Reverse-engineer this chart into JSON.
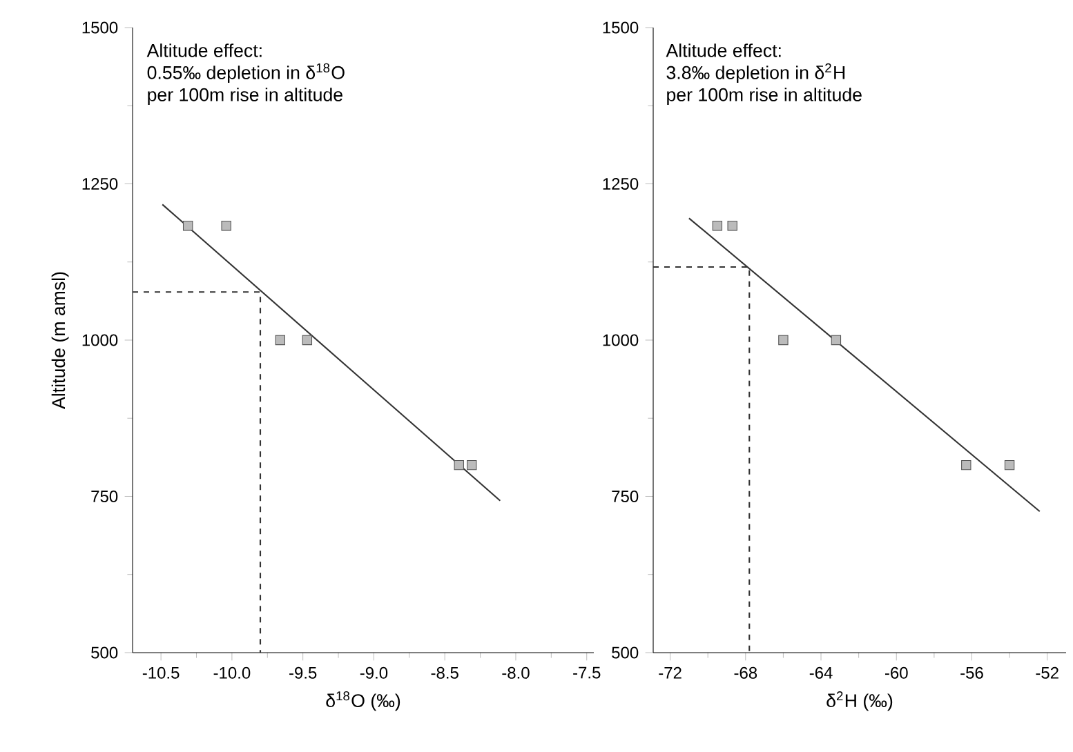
{
  "chart_data": [
    {
      "type": "scatter",
      "xlabel": "δ$^{18}$O (‰)",
      "ylabel": "Altitude (m amsl)",
      "annotations": [
        "Altitude effect:",
        "0.55‰ depletion in δ$^{18}$O",
        "per 100m rise in altitude"
      ],
      "xlim": [
        -10.7,
        -7.45
      ],
      "ylim": [
        500,
        1500
      ],
      "xticks": [
        -10.5,
        {
          "value": -10,
          "label": "-10.0"
        },
        -9.5,
        {
          "value": -9,
          "label": "-9.0"
        },
        -8.5,
        {
          "value": -8,
          "label": "-8.0"
        },
        -7.5
      ],
      "yticks": [
        500,
        750,
        1000,
        1250,
        1500
      ],
      "series": [
        {
          "marker": "square",
          "color": "#555555",
          "x": [
            -10.31,
            -10.04,
            -9.66,
            -9.47,
            -8.4,
            -8.31
          ],
          "values": [
            1183,
            1183,
            1000,
            1000,
            800,
            800
          ]
        },
        {
          "type": "line",
          "color": "#333333",
          "line_style": "solid",
          "x": [
            -10.49,
            -8.11
          ],
          "values": [
            1217,
            743
          ]
        },
        {
          "type": "line",
          "color": "#333333",
          "line_style": "dashed",
          "x": [
            -10.7,
            -9.8,
            -9.8
          ],
          "values": [
            1077,
            1077,
            500
          ]
        }
      ]
    },
    {
      "type": "scatter",
      "xlabel": "δ$^{2}$H (‰)",
      "annotations": [
        "Altitude effect:",
        "3.8‰ depletion in δ$^{2}$H",
        "per 100m rise in altitude"
      ],
      "xlim": [
        -72.9,
        -51
      ],
      "ylim": [
        500,
        1500
      ],
      "xticks": [
        -72,
        -68,
        -64,
        -60,
        -56,
        -52
      ],
      "yticks": [
        500,
        750,
        1000,
        1250,
        1500
      ],
      "series": [
        {
          "marker": "square",
          "color": "#555555",
          "x": [
            -69.5,
            -68.7,
            -66.0,
            -63.2,
            -56.3,
            -54.0
          ],
          "values": [
            1183,
            1183,
            1000,
            1000,
            800,
            800
          ]
        },
        {
          "type": "line",
          "color": "#333333",
          "line_style": "solid",
          "x": [
            -71.0,
            -52.4
          ],
          "values": [
            1195,
            726
          ]
        },
        {
          "type": "line",
          "color": "#333333",
          "line_style": "dashed",
          "x": [
            -72.9,
            -67.8,
            -67.8
          ],
          "values": [
            1117,
            1117,
            500
          ]
        }
      ]
    }
  ]
}
